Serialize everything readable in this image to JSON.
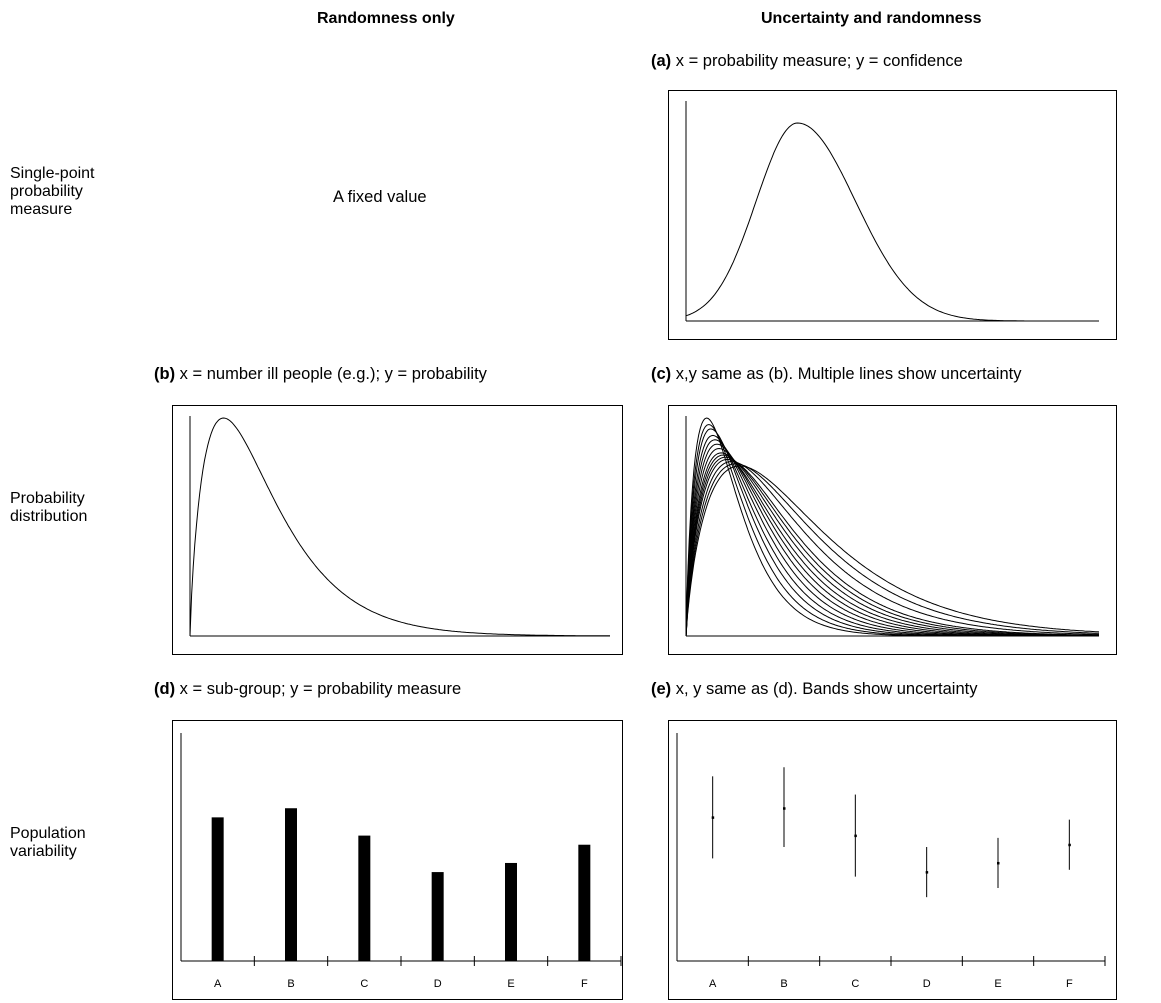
{
  "headers": {
    "left": "Randomness only",
    "right": "Uncertainty and randomness"
  },
  "row_labels": {
    "single_point": [
      "Single-point",
      "probability",
      "measure"
    ],
    "probability_distribution": [
      "Probability",
      "distribution"
    ],
    "population_variability": [
      "Population",
      "variability"
    ]
  },
  "fixed_value_text": "A fixed value",
  "captions": {
    "a": {
      "tag": "(a)",
      "text": " x = probability measure; y = confidence"
    },
    "b": {
      "tag": "(b)",
      "text": " x = number ill people (e.g.); y = probability"
    },
    "c": {
      "tag": "(c)",
      "text": " x,y same as (b). Multiple lines show uncertainty"
    },
    "d": {
      "tag": "(d)",
      "text": " x = sub-group; y = probability measure"
    },
    "e": {
      "tag": "(e)",
      "text": " x, y same as (d). Bands show uncertainty"
    }
  },
  "colors": {
    "ink": "#000000",
    "background": "#ffffff"
  },
  "chart_data": [
    {
      "id": "a",
      "type": "line",
      "shape": "single bell-shaped confidence density, peak near 0.27 of x range, long right tail",
      "curve": {
        "mode": 0.27,
        "width_left": 0.1,
        "width_right": 0.14,
        "tail_end": 0.78
      },
      "grid": false
    },
    {
      "id": "b",
      "type": "line",
      "shape": "single right-skewed distribution, sharp rise, peak near 0.08 of x range",
      "curve": {
        "peak": 0.08,
        "tail_end": 0.75
      },
      "grid": false
    },
    {
      "id": "c",
      "type": "line",
      "shape": "family of right-skewed curves showing uncertainty",
      "curves": [
        {
          "peak": 0.05,
          "height": 1.0
        },
        {
          "peak": 0.055,
          "height": 0.97
        },
        {
          "peak": 0.06,
          "height": 0.95
        },
        {
          "peak": 0.065,
          "height": 0.92
        },
        {
          "peak": 0.07,
          "height": 0.9
        },
        {
          "peak": 0.075,
          "height": 0.88
        },
        {
          "peak": 0.08,
          "height": 0.86
        },
        {
          "peak": 0.085,
          "height": 0.84
        },
        {
          "peak": 0.09,
          "height": 0.83
        },
        {
          "peak": 0.095,
          "height": 0.82
        },
        {
          "peak": 0.1,
          "height": 0.81
        },
        {
          "peak": 0.11,
          "height": 0.8
        },
        {
          "peak": 0.12,
          "height": 0.79
        },
        {
          "peak": 0.13,
          "height": 0.78
        }
      ],
      "grid": false
    },
    {
      "id": "d",
      "type": "bar",
      "categories": [
        "A",
        "B",
        "C",
        "D",
        "E",
        "F"
      ],
      "values": [
        0.63,
        0.67,
        0.55,
        0.39,
        0.43,
        0.51
      ],
      "ylim": [
        0,
        1
      ],
      "grid": false
    },
    {
      "id": "e",
      "type": "scatter",
      "categories": [
        "A",
        "B",
        "C",
        "D",
        "E",
        "F"
      ],
      "values": [
        0.63,
        0.67,
        0.55,
        0.39,
        0.43,
        0.51
      ],
      "low": [
        0.45,
        0.5,
        0.37,
        0.28,
        0.32,
        0.4
      ],
      "high": [
        0.81,
        0.85,
        0.73,
        0.5,
        0.54,
        0.62
      ],
      "ylim": [
        0,
        1
      ],
      "grid": false
    }
  ]
}
